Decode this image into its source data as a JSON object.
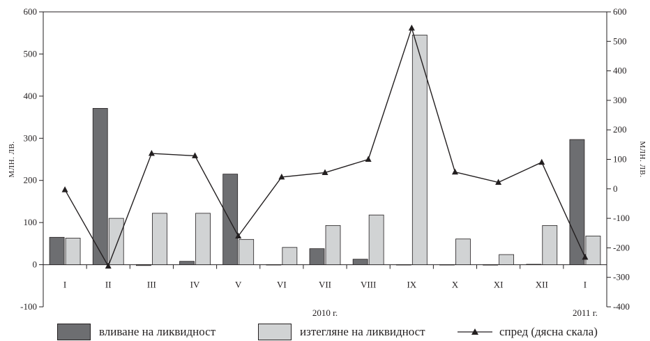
{
  "chart_data": {
    "type": "bar",
    "categories": [
      "I",
      "II",
      "III",
      "IV",
      "V",
      "VI",
      "VII",
      "VIII",
      "IX",
      "X",
      "XI",
      "XII",
      "I"
    ],
    "year_labels": [
      {
        "label": "2010 г.",
        "under_category": 6
      },
      {
        "label": "2011 г.",
        "under_category": 12
      }
    ],
    "series": [
      {
        "name": "вливане на ликвидност",
        "axis": "left",
        "kind": "bar",
        "color": "#6d6e71",
        "values": [
          65,
          371,
          -2,
          8,
          215,
          0,
          38,
          13,
          0,
          0,
          -1,
          1,
          297
        ]
      },
      {
        "name": "изтегляне на ликвидност",
        "axis": "left",
        "kind": "bar",
        "color": "#d1d3d4",
        "values": [
          63,
          110,
          122,
          122,
          60,
          41,
          93,
          118,
          545,
          61,
          24,
          93,
          68
        ]
      },
      {
        "name": "спред (дясна скала)",
        "axis": "right",
        "kind": "line",
        "color": "#231f20",
        "values": [
          -3,
          -262,
          120,
          112,
          -160,
          40,
          55,
          100,
          545,
          57,
          22,
          90,
          -232
        ]
      }
    ],
    "ylabel": "МЛН. ЛВ.",
    "y2label": "МЛН. ЛВ.",
    "ylim": [
      -100,
      600
    ],
    "y2lim": [
      -400,
      600
    ],
    "yticks": [
      "600",
      "500",
      "400",
      "300",
      "200",
      "100",
      "0",
      "-100"
    ],
    "yticks_values": [
      600,
      500,
      400,
      300,
      200,
      100,
      0,
      -100
    ],
    "y2ticks": [
      "600",
      "500",
      "400",
      "300",
      "200",
      "100",
      "0",
      "-100",
      "-200",
      "-300",
      "-400"
    ],
    "y2ticks_values": [
      600,
      500,
      400,
      300,
      200,
      100,
      0,
      -100,
      -200,
      -300,
      -400
    ],
    "grid": false,
    "legend_position": "bottom"
  }
}
